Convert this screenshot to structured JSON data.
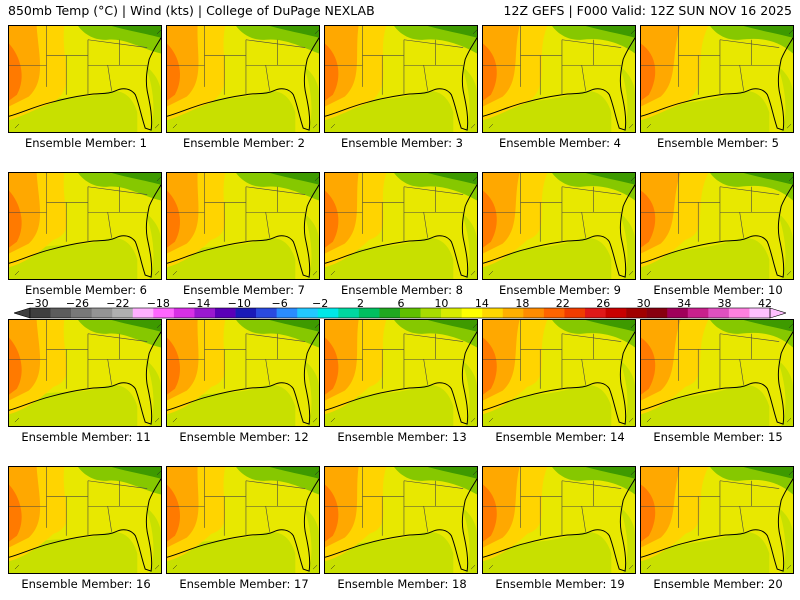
{
  "header": {
    "left": "850mb Temp (°C) | Wind (kts) | College of DuPage NEXLAB",
    "right": "12Z GEFS | F000 Valid: 12Z SUN NOV 16 2025"
  },
  "caption_prefix": "Ensemble Member: ",
  "members": [
    "1",
    "2",
    "3",
    "4",
    "5",
    "6",
    "7",
    "8",
    "9",
    "10",
    "11",
    "12",
    "13",
    "14",
    "15",
    "16",
    "17",
    "18",
    "19",
    "20"
  ],
  "colorbar": {
    "labels": [
      "-30",
      "-26",
      "-22",
      "-18",
      "-14",
      "-10",
      "-6",
      "-2",
      "2",
      "6",
      "10",
      "14",
      "18",
      "22",
      "26",
      "30",
      "34",
      "38",
      "42"
    ],
    "colors": [
      "#3f3f3f",
      "#5c5c5c",
      "#787878",
      "#949494",
      "#b0b0b0",
      "#ffb0ff",
      "#ff66ff",
      "#d730e6",
      "#9a18d0",
      "#5a00b8",
      "#1a1ab8",
      "#2a4ae0",
      "#2a8cff",
      "#22c8ff",
      "#00e8e8",
      "#00d8a0",
      "#00c060",
      "#20a820",
      "#60c000",
      "#a8dc00",
      "#d8ec00",
      "#ffff00",
      "#ffd800",
      "#ffb000",
      "#ff8c00",
      "#ff6400",
      "#f03c00",
      "#e01818",
      "#c80000",
      "#a00000",
      "#880010",
      "#a0005a",
      "#c8208c",
      "#e050c0",
      "#ff80e0",
      "#ffc0ff"
    ]
  },
  "field_colors": {
    "cool": "#c8e000",
    "mild": "#e8e800",
    "warm": "#ffd400",
    "hot": "#ffa800",
    "hotter": "#ff7a00",
    "cold_lt": "#86c800",
    "cold": "#3e9a00",
    "coast": "#000000",
    "state": "#444444"
  }
}
